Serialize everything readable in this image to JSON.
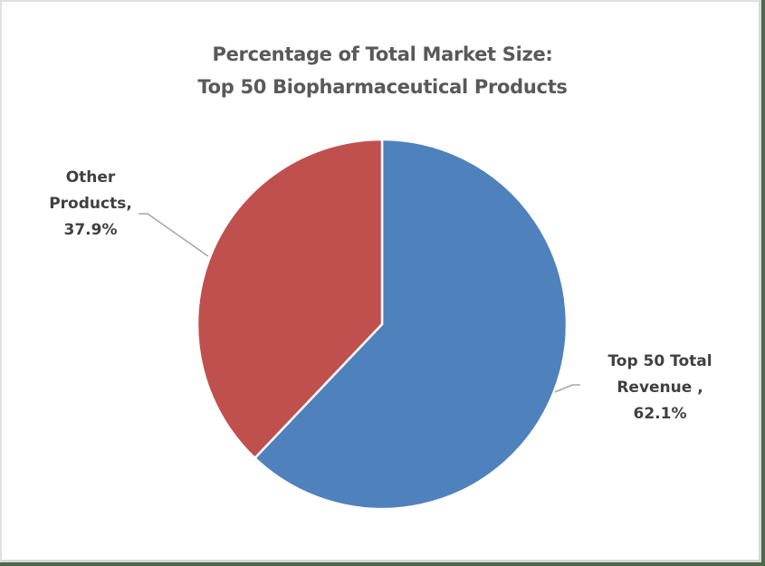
{
  "chart_data": {
    "type": "pie",
    "title": "Percentage of Total Market Size: Top 50 Biopharmaceutical Products",
    "title_lines": [
      "Percentage of Total Market Size:",
      "Top 50 Biopharmaceutical Products"
    ],
    "categories": [
      "Top 50 Total Revenue",
      "Other Products"
    ],
    "values": [
      62.1,
      37.9
    ],
    "unit": "%",
    "colors": [
      "#4f81bd",
      "#c0504d"
    ],
    "start_angle": "12 o'clock, clockwise",
    "legend": "none (data labels with leader lines)",
    "data_labels": [
      {
        "lines": [
          "Top 50 Total",
          "Revenue ,",
          "62.1%"
        ]
      },
      {
        "lines": [
          "Other",
          "Products,",
          "37.9%"
        ]
      }
    ]
  },
  "colors": {
    "background": "#ffffff",
    "title": "#595959",
    "label": "#404040",
    "leader_line": "#a6a6a6",
    "slice_border": "#ffffff"
  }
}
